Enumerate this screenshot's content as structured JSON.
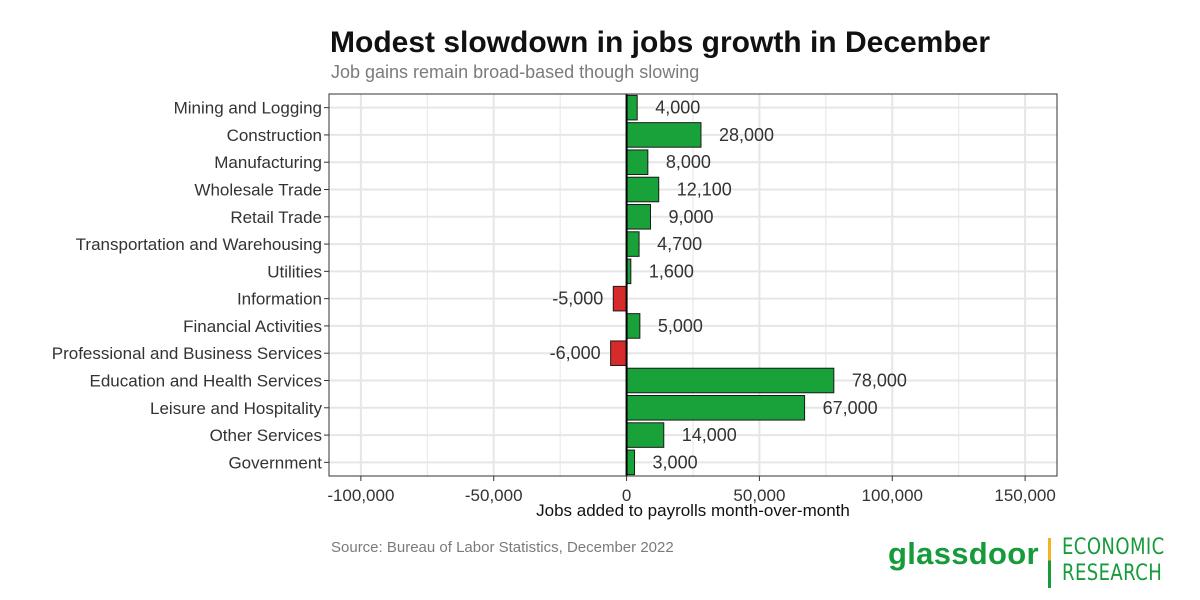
{
  "chart_data": {
    "type": "bar",
    "orientation": "horizontal",
    "title": "Modest slowdown in jobs growth in December",
    "subtitle": "Job gains remain broad-based though slowing",
    "xlabel": "Jobs added to payrolls month-over-month",
    "ylabel": "",
    "categories": [
      "Mining and Logging",
      "Construction",
      "Manufacturing",
      "Wholesale Trade",
      "Retail Trade",
      "Transportation and Warehousing",
      "Utilities",
      "Information",
      "Financial Activities",
      "Professional and Business Services",
      "Education and Health Services",
      "Leisure and Hospitality",
      "Other Services",
      "Government"
    ],
    "values": [
      4000,
      28000,
      8000,
      12100,
      9000,
      4700,
      1600,
      -5000,
      5000,
      -6000,
      78000,
      67000,
      14000,
      3000
    ],
    "value_labels": [
      "4,000",
      "28,000",
      "8,000",
      "12,100",
      "9,000",
      "4,700",
      "1,600",
      "-5,000",
      "5,000",
      "-6,000",
      "78,000",
      "67,000",
      "14,000",
      "3,000"
    ],
    "xlim": [
      -112000,
      162000
    ],
    "xticks": [
      -100000,
      -50000,
      0,
      50000,
      100000,
      150000
    ],
    "xtick_labels": [
      "-100,000",
      "-50,000",
      "0",
      "50,000",
      "100,000",
      "150,000"
    ],
    "grid": true,
    "colors": {
      "positive": "#19a239",
      "negative": "#d72a2a",
      "bar_border": "#1a1a1a",
      "grid": "#e6e6e6",
      "text": "#333333"
    }
  },
  "footer": {
    "source": "Source: Bureau of Labor Statistics, December 2022"
  },
  "brand": {
    "name": "glassdoor",
    "line1": "ECONOMIC",
    "line2": "RESEARCH",
    "green": "#169b3a",
    "yellow": "#f2b51b"
  }
}
